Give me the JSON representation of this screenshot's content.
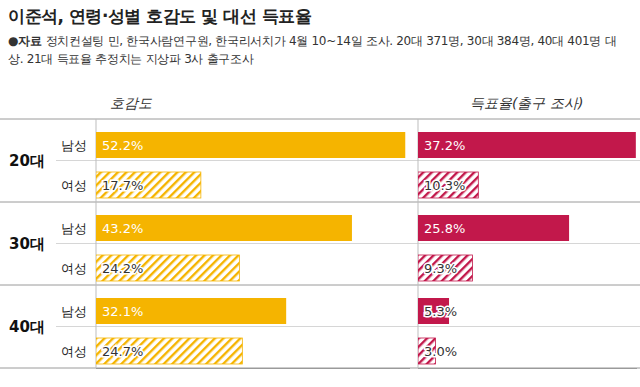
{
  "header": {
    "title": "이준석, 연령·성별 호감도 및 대선 득표율",
    "source_label": "●자료",
    "source": "정치컨설팅 민, 한국사람연구원, 한국리서치가 4월 10~14일 조사. 20대 371명, 30대 384명, 40대 401명 대상. 21대 득표율 추정치는 지상파 3사 출구조사"
  },
  "chart_data": [
    {
      "type": "bar",
      "title": "호감도",
      "orientation": "horizontal",
      "categories": [
        "20대",
        "30대",
        "40대"
      ],
      "series": [
        {
          "name": "남성",
          "color": "#f5b400",
          "values": [
            52.2,
            43.2,
            32.1
          ],
          "value_labels": [
            "52.2%",
            "43.2%",
            "32.1%"
          ]
        },
        {
          "name": "여성",
          "color": "#f5b400",
          "values": [
            17.7,
            24.2,
            24.7
          ],
          "value_labels": [
            "17.7%",
            "24.2%",
            "24.7%"
          ]
        }
      ],
      "xlim": [
        0,
        53
      ],
      "data_labels": true,
      "tick_labels": false
    },
    {
      "type": "bar",
      "title": "득표율(출구 조사)",
      "orientation": "horizontal",
      "series": [
        {
          "color": "#c2184b",
          "values": [
            37.2,
            25.8,
            5.3
          ],
          "value_labels": [
            "37.2%",
            "25.8%",
            "5.3%"
          ]
        },
        {
          "color": "#c2184b",
          "values": [
            10.3,
            9.3,
            3.0
          ],
          "value_labels": [
            "10.3%",
            "9.3%",
            "3.0%"
          ]
        }
      ],
      "xlim": [
        0,
        37.4
      ],
      "data_labels": true,
      "tick_labels": false
    }
  ]
}
